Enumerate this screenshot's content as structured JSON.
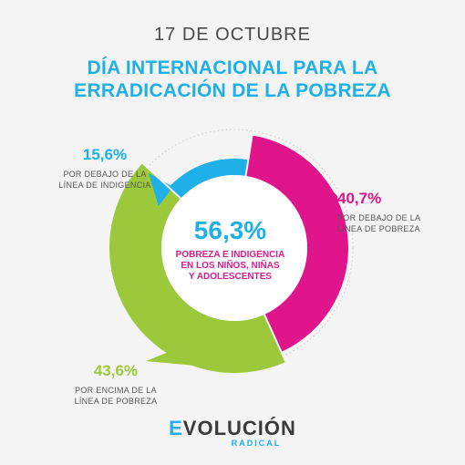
{
  "header": {
    "date": "17 DE OCTUBRE",
    "title_line1": "DÍA INTERNACIONAL PARA LA",
    "title_line2": "ERRADICACIÓN DE LA POBREZA"
  },
  "center": {
    "value": "56,3%",
    "line1": "POBREZA E INDIGENCIA",
    "line2": "EN LOS NIÑOS, NIÑAS",
    "line3": "Y ADOLESCENTES"
  },
  "chart_data": {
    "type": "pie",
    "subtype": "donut",
    "slices": [
      {
        "value": 40.7,
        "label": "40,7%",
        "desc1": "POR DEBAJO DE LA",
        "desc2": "LÍNEA DE POBREZA",
        "color": "#e0158c"
      },
      {
        "value": 43.6,
        "label": "43,6%",
        "desc1": "POR ENCIMA DE LA",
        "desc2": "LÍNEA DE POBREZA",
        "color": "#9cc93b"
      },
      {
        "value": 15.6,
        "label": "15,6%",
        "desc1": "POR DEBAJO DE LA",
        "desc2": "LÍNEA DE INDIGENCIA",
        "color": "#1eb0e6"
      }
    ]
  },
  "logo": {
    "e": "E",
    "rest": "VOLUCIÓN",
    "sub": "RADICAL",
    "colors": [
      "#1eb0e6",
      "#e0158c",
      "#9cc93b",
      "#f5b800"
    ]
  }
}
